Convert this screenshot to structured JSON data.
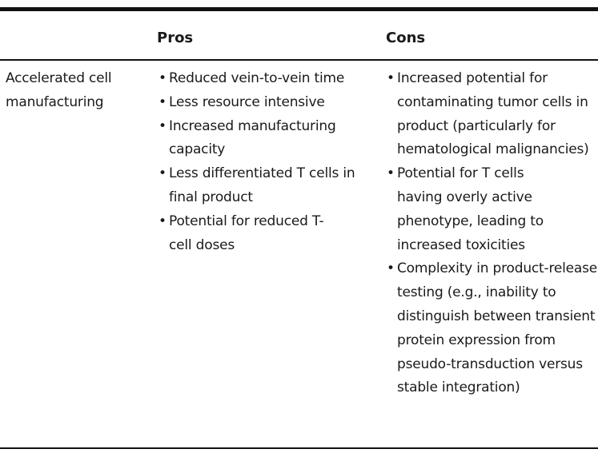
{
  "table": {
    "headers": {
      "pros": "Pros",
      "cons": "Cons"
    },
    "rows": [
      {
        "label_lines": [
          "Accelerated cell",
          "manufacturing"
        ],
        "pros": [
          "Reduced vein-to-vein time",
          "Less resource intensive",
          "Increased manufacturing capacity",
          "Less differentiated T cells in final product",
          "Potential for reduced T-cell doses"
        ],
        "cons": [
          "Increased potential for contaminating tumor cells in product (particularly for hematological malignancies)",
          "Potential for T cells having overly active phenotype, leading to increased toxicities",
          "Complexity in product-release testing (e.g., inability to distinguish between transient protein expression from pseudo-transduction versus stable integration)"
        ]
      }
    ]
  }
}
